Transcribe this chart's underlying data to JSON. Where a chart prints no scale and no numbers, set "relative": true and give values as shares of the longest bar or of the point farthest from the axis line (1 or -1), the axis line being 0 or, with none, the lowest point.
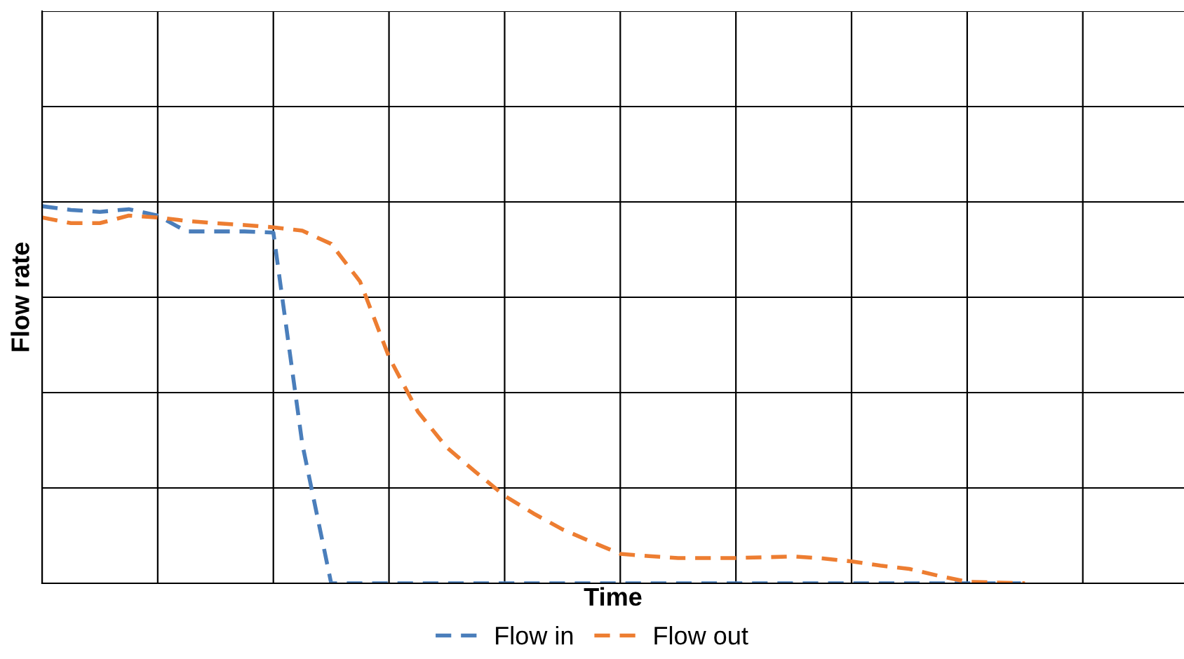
{
  "chart_data": {
    "type": "line",
    "relative": true,
    "xlabel": "Time",
    "ylabel": "Flow rate",
    "categories": [
      null,
      null,
      null,
      null,
      null,
      null,
      null,
      null,
      null,
      null,
      null,
      null,
      null,
      null,
      null,
      null,
      null,
      null,
      null,
      null,
      null,
      null,
      null,
      null,
      null,
      null,
      null,
      null,
      null,
      null,
      null,
      null,
      null,
      null,
      null,
      null,
      null,
      null,
      null,
      null
    ],
    "tick_labels": false,
    "grid": true,
    "legend": "bottom",
    "line_style": "dashed",
    "marker": "none",
    "series": [
      {
        "name": "Flow in",
        "color": "#4a7ebb",
        "values": [
          1.0,
          0.99,
          0.985,
          0.992,
          0.975,
          0.933,
          0.933,
          0.933,
          0.93,
          0.37,
          0,
          0,
          0,
          0,
          0,
          0,
          0,
          0,
          0,
          0,
          0,
          0,
          0,
          0,
          0,
          0,
          0,
          0,
          0,
          0,
          0,
          0,
          0,
          0,
          0,
          null,
          null,
          null,
          null,
          null
        ]
      },
      {
        "name": "Flow out",
        "color": "#ed7d31",
        "values": [
          0.97,
          0.955,
          0.955,
          0.975,
          0.97,
          0.961,
          0.955,
          0.95,
          0.944,
          0.935,
          0.9,
          0.8,
          0.6,
          0.455,
          0.36,
          0.295,
          0.232,
          0.185,
          0.143,
          0.11,
          0.078,
          0.072,
          0.067,
          0.067,
          0.067,
          0.069,
          0.071,
          0.066,
          0.058,
          0.047,
          0.038,
          0.02,
          0.004,
          0.002,
          0,
          null,
          null,
          null,
          null,
          null
        ]
      }
    ]
  }
}
